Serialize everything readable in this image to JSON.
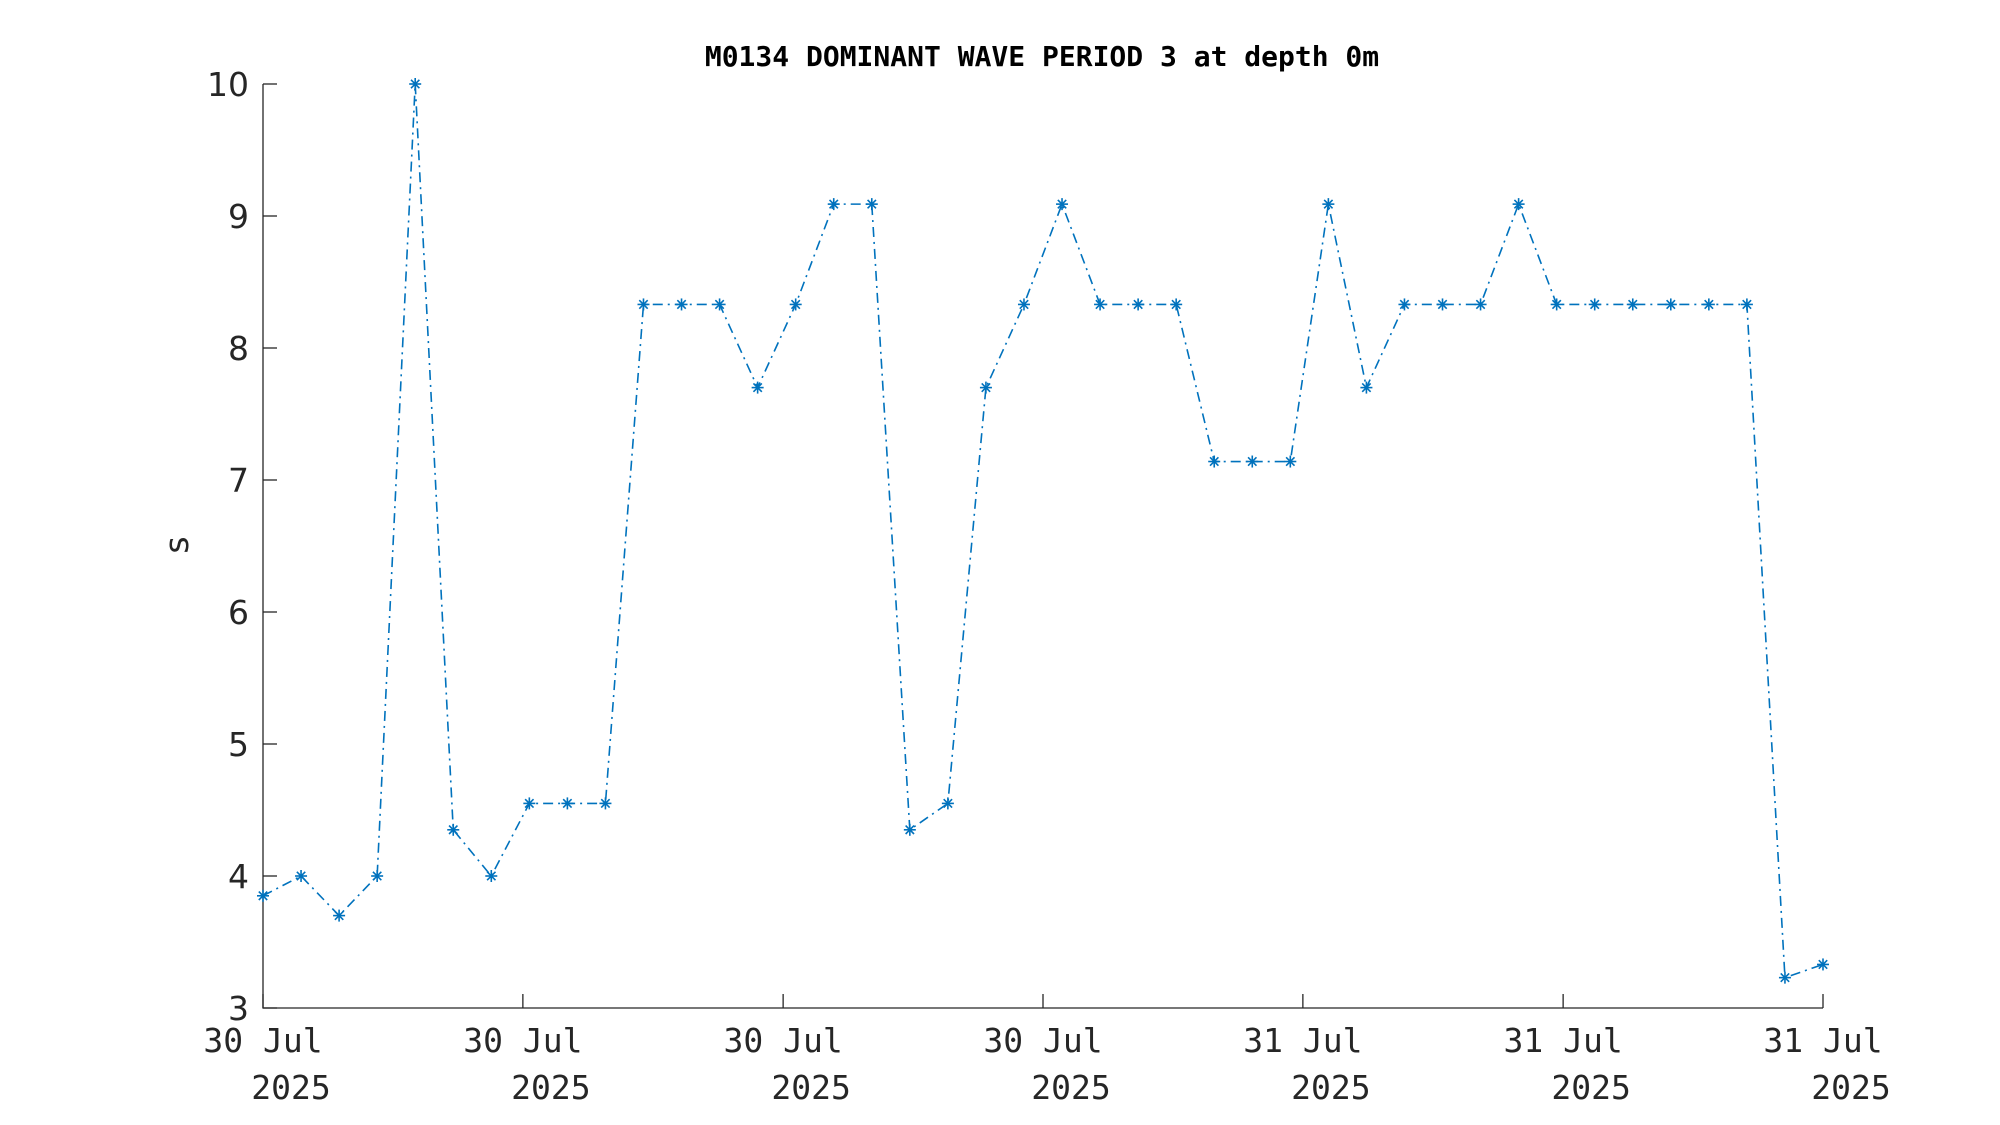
{
  "chart_data": {
    "type": "line",
    "title": "M0134 DOMINANT WAVE PERIOD 3 at depth 0m",
    "xlabel": "",
    "ylabel": "s",
    "ylim": [
      3,
      10
    ],
    "yticks": [
      3,
      4,
      5,
      6,
      7,
      8,
      9,
      10
    ],
    "xlim": [
      0,
      41
    ],
    "xticks": [
      {
        "at": 0,
        "line1": "30 Jul",
        "line2": "2025"
      },
      {
        "at": 6.83,
        "line1": "30 Jul",
        "line2": "2025"
      },
      {
        "at": 13.67,
        "line1": "30 Jul",
        "line2": "2025"
      },
      {
        "at": 20.5,
        "line1": "30 Jul",
        "line2": "2025"
      },
      {
        "at": 27.33,
        "line1": "31 Jul",
        "line2": "2025"
      },
      {
        "at": 34.17,
        "line1": "31 Jul",
        "line2": "2025"
      },
      {
        "at": 41,
        "line1": "31 Jul",
        "line2": "2025"
      }
    ],
    "grid": false,
    "color": "#0072BD",
    "marker": "asterisk",
    "line_style": "dash-dot",
    "series": [
      {
        "values": [
          3.85,
          4.0,
          3.7,
          4.0,
          10.0,
          4.35,
          4.0,
          4.55,
          4.55,
          4.55,
          8.33,
          8.33,
          8.33,
          7.7,
          8.33,
          9.09,
          9.09,
          4.35,
          4.55,
          7.7,
          8.33,
          9.09,
          8.33,
          8.33,
          8.33,
          7.14,
          7.14,
          7.14,
          9.09,
          7.7,
          8.33,
          8.33,
          8.33,
          9.09,
          8.33,
          8.33,
          8.33,
          8.33,
          8.33,
          8.33,
          3.23,
          3.33
        ]
      }
    ]
  }
}
